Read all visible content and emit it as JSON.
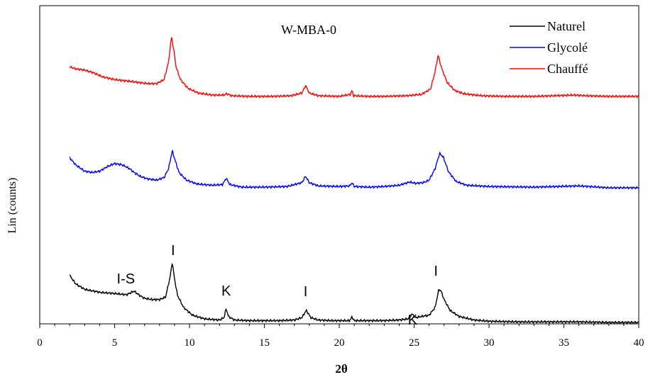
{
  "chart_data": {
    "type": "line",
    "title": "W-MBA-0",
    "xlabel": "2θ",
    "ylabel": "Lin (counts)",
    "xlim": [
      0,
      40
    ],
    "x_ticks": [
      0,
      5,
      10,
      15,
      20,
      25,
      30,
      35,
      40
    ],
    "y_ticks_shown": false,
    "grid": false,
    "legend_position": "top-right",
    "series": [
      {
        "name": "Naturel",
        "color": "#000000",
        "points": [
          [
            2,
            0.78
          ],
          [
            2.4,
            0.64
          ],
          [
            3,
            0.55
          ],
          [
            4,
            0.5
          ],
          [
            5,
            0.48
          ],
          [
            5.8,
            0.46
          ],
          [
            6.3,
            0.52
          ],
          [
            6.6,
            0.46
          ],
          [
            7,
            0.4
          ],
          [
            7.5,
            0.38
          ],
          [
            8,
            0.38
          ],
          [
            8.4,
            0.42
          ],
          [
            8.7,
            0.75
          ],
          [
            8.85,
            1.0
          ],
          [
            9.0,
            0.72
          ],
          [
            9.2,
            0.45
          ],
          [
            9.6,
            0.25
          ],
          [
            10.2,
            0.12
          ],
          [
            11,
            0.06
          ],
          [
            12,
            0.04
          ],
          [
            12.3,
            0.08
          ],
          [
            12.45,
            0.23
          ],
          [
            12.6,
            0.1
          ],
          [
            13,
            0.04
          ],
          [
            14,
            0.03
          ],
          [
            15,
            0.03
          ],
          [
            16,
            0.03
          ],
          [
            17,
            0.04
          ],
          [
            17.5,
            0.08
          ],
          [
            17.8,
            0.2
          ],
          [
            18.1,
            0.08
          ],
          [
            18.6,
            0.04
          ],
          [
            19.5,
            0.03
          ],
          [
            20.7,
            0.03
          ],
          [
            20.85,
            0.09
          ],
          [
            21.0,
            0.03
          ],
          [
            22,
            0.03
          ],
          [
            23,
            0.03
          ],
          [
            24,
            0.04
          ],
          [
            24.6,
            0.06
          ],
          [
            24.85,
            0.14
          ],
          [
            25.1,
            0.08
          ],
          [
            25.5,
            0.1
          ],
          [
            26,
            0.12
          ],
          [
            26.4,
            0.25
          ],
          [
            26.65,
            0.55
          ],
          [
            26.8,
            0.52
          ],
          [
            27.0,
            0.38
          ],
          [
            27.4,
            0.2
          ],
          [
            28,
            0.1
          ],
          [
            29,
            0.04
          ],
          [
            30,
            0.02
          ],
          [
            32,
            0.01
          ],
          [
            34,
            0.01
          ],
          [
            36,
            0.01
          ],
          [
            38,
            0.0
          ],
          [
            40,
            0.0
          ]
        ]
      },
      {
        "name": "Glycolé",
        "color": "#0000ff",
        "points": [
          [
            2,
            0.47
          ],
          [
            2.4,
            0.36
          ],
          [
            3,
            0.26
          ],
          [
            3.5,
            0.24
          ],
          [
            4,
            0.26
          ],
          [
            4.5,
            0.33
          ],
          [
            5,
            0.38
          ],
          [
            5.5,
            0.36
          ],
          [
            6,
            0.3
          ],
          [
            6.3,
            0.24
          ],
          [
            6.7,
            0.18
          ],
          [
            7.2,
            0.14
          ],
          [
            7.8,
            0.12
          ],
          [
            8.3,
            0.16
          ],
          [
            8.6,
            0.3
          ],
          [
            8.85,
            0.58
          ],
          [
            9.0,
            0.46
          ],
          [
            9.3,
            0.24
          ],
          [
            9.8,
            0.12
          ],
          [
            10.5,
            0.06
          ],
          [
            11.5,
            0.04
          ],
          [
            12.2,
            0.05
          ],
          [
            12.45,
            0.15
          ],
          [
            12.7,
            0.05
          ],
          [
            13.5,
            0.01
          ],
          [
            15,
            0.01
          ],
          [
            16.5,
            0.02
          ],
          [
            17.5,
            0.08
          ],
          [
            17.75,
            0.18
          ],
          [
            18.0,
            0.08
          ],
          [
            18.6,
            0.03
          ],
          [
            20,
            0.02
          ],
          [
            20.7,
            0.03
          ],
          [
            20.85,
            0.08
          ],
          [
            21.0,
            0.02
          ],
          [
            22,
            0.01
          ],
          [
            23,
            0.02
          ],
          [
            24,
            0.04
          ],
          [
            24.7,
            0.09
          ],
          [
            25.1,
            0.07
          ],
          [
            25.6,
            0.08
          ],
          [
            26,
            0.12
          ],
          [
            26.4,
            0.3
          ],
          [
            26.7,
            0.54
          ],
          [
            26.95,
            0.48
          ],
          [
            27.3,
            0.25
          ],
          [
            27.8,
            0.1
          ],
          [
            28.5,
            0.04
          ],
          [
            30,
            0.02
          ],
          [
            33,
            0.01
          ],
          [
            36,
            0.03
          ],
          [
            38,
            0.0
          ],
          [
            40,
            0.0
          ]
        ]
      },
      {
        "name": "Chauffé",
        "color": "#ff0000",
        "points": [
          [
            2,
            0.45
          ],
          [
            2.4,
            0.42
          ],
          [
            3,
            0.4
          ],
          [
            3.6,
            0.36
          ],
          [
            4.2,
            0.3
          ],
          [
            5,
            0.26
          ],
          [
            5.8,
            0.24
          ],
          [
            6.5,
            0.22
          ],
          [
            7.2,
            0.2
          ],
          [
            7.8,
            0.2
          ],
          [
            8.3,
            0.26
          ],
          [
            8.6,
            0.52
          ],
          [
            8.8,
            0.9
          ],
          [
            8.95,
            0.7
          ],
          [
            9.1,
            0.45
          ],
          [
            9.4,
            0.26
          ],
          [
            9.9,
            0.13
          ],
          [
            10.6,
            0.06
          ],
          [
            11.5,
            0.03
          ],
          [
            12.3,
            0.03
          ],
          [
            12.5,
            0.05
          ],
          [
            12.8,
            0.02
          ],
          [
            14,
            0.01
          ],
          [
            15.5,
            0.01
          ],
          [
            16.8,
            0.02
          ],
          [
            17.5,
            0.06
          ],
          [
            17.75,
            0.17
          ],
          [
            18.0,
            0.06
          ],
          [
            18.6,
            0.02
          ],
          [
            20,
            0.01
          ],
          [
            20.75,
            0.04
          ],
          [
            20.85,
            0.1
          ],
          [
            20.95,
            0.02
          ],
          [
            22,
            0.01
          ],
          [
            23,
            0.01
          ],
          [
            24.5,
            0.02
          ],
          [
            25.5,
            0.04
          ],
          [
            26.1,
            0.12
          ],
          [
            26.4,
            0.38
          ],
          [
            26.6,
            0.62
          ],
          [
            26.85,
            0.42
          ],
          [
            27.2,
            0.22
          ],
          [
            27.7,
            0.1
          ],
          [
            28.3,
            0.05
          ],
          [
            29.5,
            0.02
          ],
          [
            31,
            0.01
          ],
          [
            33,
            0.01
          ],
          [
            35.7,
            0.03
          ],
          [
            36.5,
            0.02
          ],
          [
            38,
            0.01
          ],
          [
            40,
            0.01
          ]
        ]
      }
    ],
    "annotations": [
      {
        "text": "I-S",
        "x": 5.75
      },
      {
        "text": "I",
        "x": 8.9
      },
      {
        "text": "K",
        "x": 12.45
      },
      {
        "text": "I",
        "x": 17.75
      },
      {
        "text": "K",
        "x": 24.9
      },
      {
        "text": "I",
        "x": 26.45
      }
    ]
  }
}
